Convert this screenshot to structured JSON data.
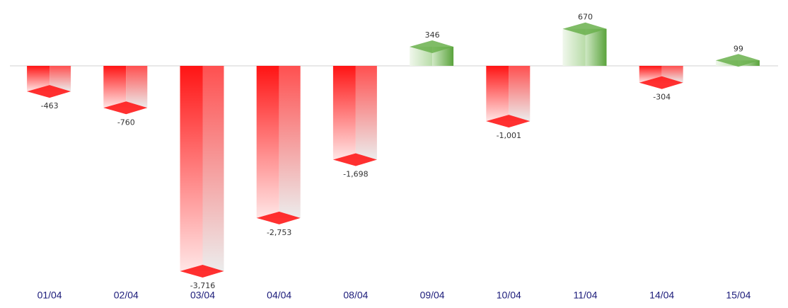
{
  "chart_data": {
    "type": "bar3d",
    "categories": [
      "01/04",
      "02/04",
      "03/04",
      "04/04",
      "08/04",
      "09/04",
      "10/04",
      "11/04",
      "14/04",
      "15/04"
    ],
    "values": [
      -463,
      -760,
      -3716,
      -2753,
      -1698,
      346,
      -1001,
      670,
      -304,
      99
    ],
    "value_labels": [
      "-463",
      "-760",
      "-3,716",
      "-2,753",
      "-1,698",
      "346",
      "-1,001",
      "670",
      "-304",
      "99"
    ],
    "negative_color": "#ff1a1a",
    "positive_color": "#6ab04c"
  }
}
